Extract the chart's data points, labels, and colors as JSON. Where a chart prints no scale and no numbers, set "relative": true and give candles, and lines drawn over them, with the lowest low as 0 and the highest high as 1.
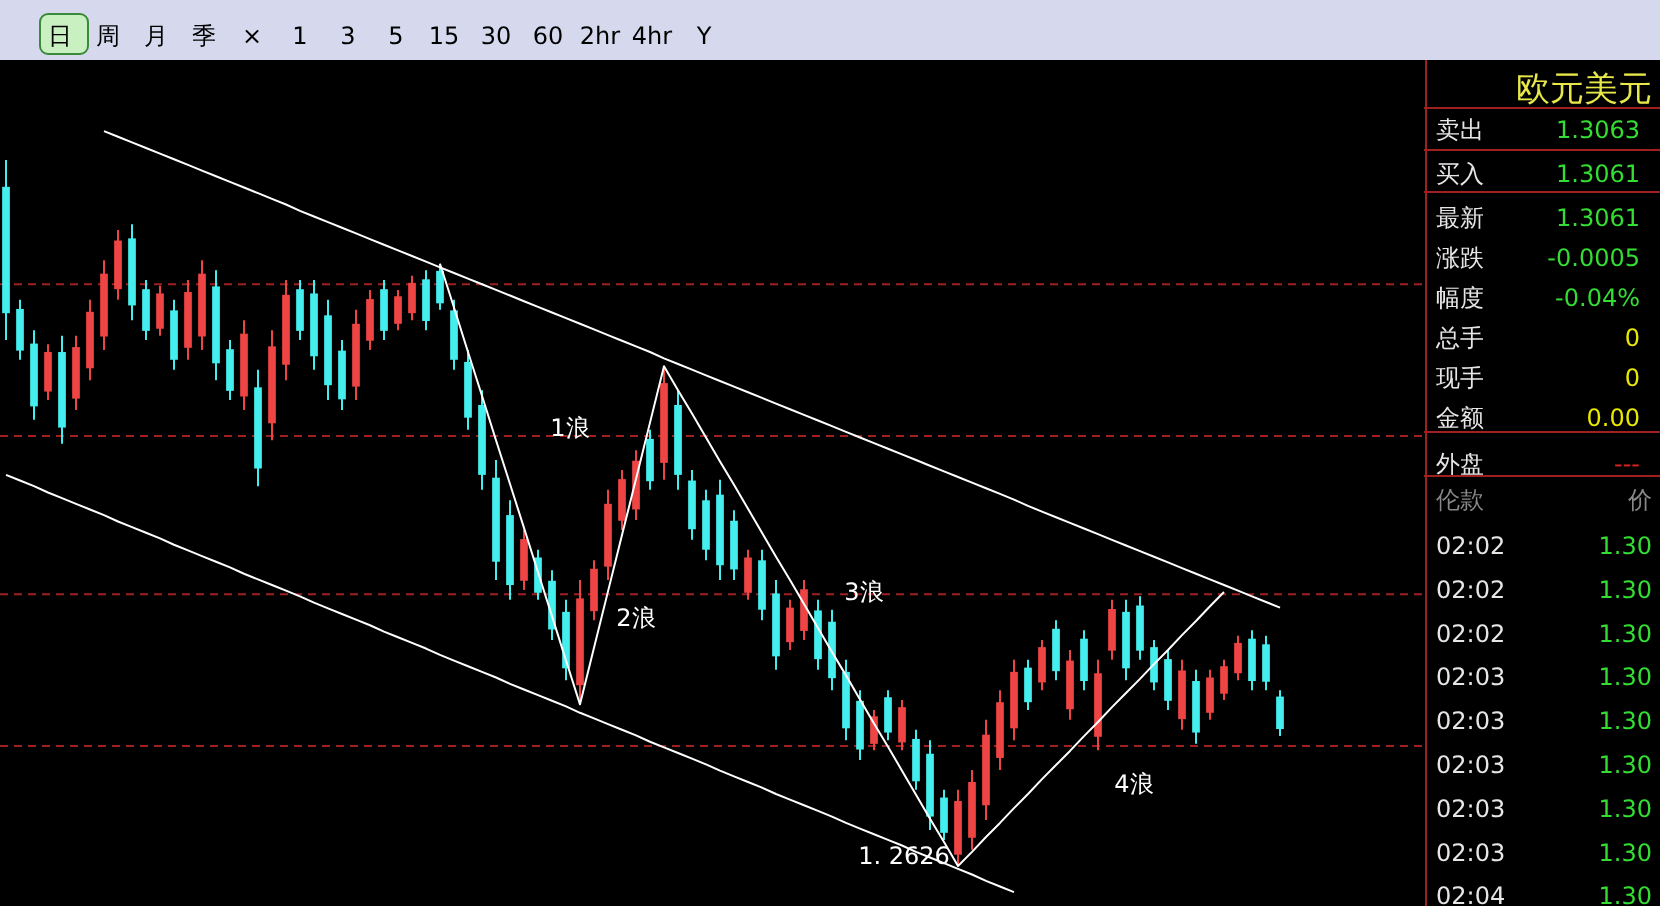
{
  "chart_data": [
    {
      "type": "other",
      "annotations": [
        "日",
        "周",
        "月",
        "季",
        "×",
        "1",
        "3",
        "5",
        "15",
        "30",
        "60",
        "2hr",
        "4hr",
        "Y"
      ]
    },
    {
      "type": "candlestick",
      "relative": true,
      "colors": [
        "#44eeee",
        "#44eeee",
        "#44eeee",
        "#ee4444",
        "#44eeee",
        "#ee4444",
        "#ee4444",
        "#ee4444",
        "#ee4444",
        "#44eeee",
        "#44eeee",
        "#ee4444",
        "#44eeee",
        "#ee4444",
        "#ee4444",
        "#44eeee",
        "#44eeee",
        "#ee4444",
        "#44eeee",
        "#ee4444",
        "#ee4444",
        "#44eeee",
        "#44eeee",
        "#44eeee",
        "#44eeee",
        "#ee4444",
        "#ee4444",
        "#44eeee",
        "#ee4444",
        "#ee4444",
        "#44eeee",
        "#44eeee",
        "#44eeee",
        "#44eeee",
        "#44eeee",
        "#44eeee",
        "#44eeee",
        "#ee4444",
        "#44eeee",
        "#44eeee",
        "#44eeee",
        "#ee4444",
        "#ee4444",
        "#ee4444",
        "#ee4444",
        "#ee4444",
        "#44eeee",
        "#ee4444",
        "#44eeee",
        "#44eeee",
        "#44eeee",
        "#44eeee",
        "#44eeee",
        "#ee4444",
        "#44eeee",
        "#44eeee",
        "#ee4444",
        "#ee4444",
        "#44eeee",
        "#44eeee",
        "#44eeee",
        "#44eeee",
        "#ee4444",
        "#44eeee",
        "#ee4444",
        "#44eeee",
        "#44eeee",
        "#44eeee",
        "#ee4444",
        "#ee4444",
        "#ee4444",
        "#ee4444",
        "#ee4444",
        "#44eeee",
        "#ee4444",
        "#44eeee",
        "#ee4444",
        "#44eeee",
        "#ee4444",
        "#ee4444",
        "#44eeee",
        "#44eeee",
        "#44eeee",
        "#44eeee",
        "#ee4444",
        "#44eeee",
        "#ee4444",
        "#ee4444",
        "#ee4444",
        "#44eeee",
        "#44eeee",
        "#44eeee"
      ],
      "categories": [
        null,
        null,
        null,
        null,
        null,
        null,
        null,
        null,
        null,
        null,
        null,
        null,
        null,
        null,
        null,
        null,
        null,
        null,
        null,
        null,
        null,
        null,
        null,
        null,
        null,
        null,
        null,
        null,
        null,
        null,
        null,
        null,
        null,
        null,
        null,
        null,
        null,
        null,
        null,
        null,
        null,
        null,
        null,
        null,
        null,
        null,
        null,
        null,
        null,
        null,
        null,
        null,
        null,
        null,
        null,
        null,
        null,
        null,
        null,
        null,
        null,
        null,
        null,
        null,
        null,
        null,
        null,
        null,
        null,
        null,
        null,
        null,
        null,
        null,
        null,
        null,
        null,
        null,
        null,
        null,
        null,
        null,
        null,
        null,
        null,
        null,
        null,
        null,
        null,
        null,
        null,
        null
      ],
      "ohlc": [
        [
          0.962,
          1,
          0.745,
          0.783
        ],
        [
          0.789,
          0.802,
          0.717,
          0.73
        ],
        [
          0.74,
          0.759,
          0.632,
          0.651
        ],
        [
          0.672,
          0.739,
          0.66,
          0.728
        ],
        [
          0.728,
          0.751,
          0.598,
          0.621
        ],
        [
          0.662,
          0.751,
          0.646,
          0.735
        ],
        [
          0.705,
          0.802,
          0.688,
          0.785
        ],
        [
          0.75,
          0.858,
          0.731,
          0.839
        ],
        [
          0.817,
          0.901,
          0.802,
          0.886
        ],
        [
          0.889,
          0.909,
          0.773,
          0.794
        ],
        [
          0.817,
          0.83,
          0.745,
          0.758
        ],
        [
          0.761,
          0.822,
          0.751,
          0.811
        ],
        [
          0.787,
          0.802,
          0.703,
          0.717
        ],
        [
          0.734,
          0.83,
          0.717,
          0.813
        ],
        [
          0.75,
          0.858,
          0.731,
          0.839
        ],
        [
          0.821,
          0.844,
          0.688,
          0.712
        ],
        [
          0.732,
          0.745,
          0.66,
          0.673
        ],
        [
          0.665,
          0.773,
          0.646,
          0.754
        ],
        [
          0.678,
          0.703,
          0.538,
          0.563
        ],
        [
          0.627,
          0.759,
          0.603,
          0.736
        ],
        [
          0.71,
          0.83,
          0.688,
          0.809
        ],
        [
          0.817,
          0.83,
          0.745,
          0.758
        ],
        [
          0.811,
          0.83,
          0.703,
          0.722
        ],
        [
          0.78,
          0.802,
          0.66,
          0.681
        ],
        [
          0.73,
          0.745,
          0.646,
          0.661
        ],
        [
          0.679,
          0.788,
          0.66,
          0.768
        ],
        [
          0.744,
          0.816,
          0.731,
          0.803
        ],
        [
          0.817,
          0.83,
          0.745,
          0.758
        ],
        [
          0.768,
          0.816,
          0.759,
          0.807
        ],
        [
          0.783,
          0.836,
          0.773,
          0.826
        ],
        [
          0.831,
          0.844,
          0.759,
          0.772
        ],
        [
          0.843,
          0.853,
          0.788,
          0.797
        ],
        [
          0.787,
          0.802,
          0.703,
          0.717
        ],
        [
          0.714,
          0.731,
          0.618,
          0.635
        ],
        [
          0.653,
          0.674,
          0.533,
          0.554
        ],
        [
          0.55,
          0.575,
          0.405,
          0.431
        ],
        [
          0.497,
          0.518,
          0.377,
          0.398
        ],
        [
          0.404,
          0.476,
          0.391,
          0.463
        ],
        [
          0.437,
          0.448,
          0.377,
          0.387
        ],
        [
          0.404,
          0.419,
          0.32,
          0.335
        ],
        [
          0.36,
          0.377,
          0.263,
          0.28
        ],
        [
          0.256,
          0.405,
          0.229,
          0.379
        ],
        [
          0.361,
          0.433,
          0.348,
          0.421
        ],
        [
          0.424,
          0.533,
          0.405,
          0.513
        ],
        [
          0.489,
          0.561,
          0.476,
          0.548
        ],
        [
          0.505,
          0.589,
          0.49,
          0.574
        ],
        [
          0.605,
          0.618,
          0.533,
          0.545
        ],
        [
          0.571,
          0.708,
          0.547,
          0.684
        ],
        [
          0.653,
          0.674,
          0.533,
          0.554
        ],
        [
          0.546,
          0.561,
          0.462,
          0.477
        ],
        [
          0.518,
          0.533,
          0.433,
          0.448
        ],
        [
          0.526,
          0.547,
          0.405,
          0.426
        ],
        [
          0.489,
          0.504,
          0.405,
          0.42
        ],
        [
          0.387,
          0.448,
          0.377,
          0.437
        ],
        [
          0.433,
          0.448,
          0.348,
          0.363
        ],
        [
          0.386,
          0.405,
          0.278,
          0.297
        ],
        [
          0.317,
          0.377,
          0.306,
          0.366
        ],
        [
          0.333,
          0.405,
          0.32,
          0.392
        ],
        [
          0.362,
          0.377,
          0.278,
          0.293
        ],
        [
          0.346,
          0.363,
          0.249,
          0.266
        ],
        [
          0.275,
          0.292,
          0.178,
          0.195
        ],
        [
          0.234,
          0.249,
          0.15,
          0.165
        ],
        [
          0.173,
          0.221,
          0.164,
          0.212
        ],
        [
          0.239,
          0.249,
          0.178,
          0.189
        ],
        [
          0.175,
          0.235,
          0.164,
          0.225
        ],
        [
          0.18,
          0.193,
          0.108,
          0.12
        ],
        [
          0.159,
          0.178,
          0.051,
          0.07
        ],
        [
          0.097,
          0.108,
          0.037,
          0.047
        ],
        [
          0.016,
          0.108,
          0,
          0.092
        ],
        [
          0.04,
          0.136,
          0.023,
          0.119
        ],
        [
          0.086,
          0.207,
          0.065,
          0.186
        ],
        [
          0.153,
          0.249,
          0.136,
          0.232
        ],
        [
          0.195,
          0.292,
          0.178,
          0.275
        ],
        [
          0.281,
          0.292,
          0.221,
          0.232
        ],
        [
          0.26,
          0.32,
          0.249,
          0.31
        ],
        [
          0.336,
          0.348,
          0.263,
          0.276
        ],
        [
          0.222,
          0.306,
          0.207,
          0.291
        ],
        [
          0.322,
          0.334,
          0.249,
          0.262
        ],
        [
          0.183,
          0.292,
          0.164,
          0.273
        ],
        [
          0.305,
          0.377,
          0.292,
          0.364
        ],
        [
          0.36,
          0.377,
          0.263,
          0.28
        ],
        [
          0.369,
          0.382,
          0.292,
          0.305
        ],
        [
          0.31,
          0.32,
          0.249,
          0.26
        ],
        [
          0.293,
          0.306,
          0.221,
          0.234
        ],
        [
          0.208,
          0.292,
          0.193,
          0.277
        ],
        [
          0.262,
          0.278,
          0.173,
          0.189
        ],
        [
          0.217,
          0.278,
          0.207,
          0.267
        ],
        [
          0.244,
          0.292,
          0.235,
          0.283
        ],
        [
          0.273,
          0.326,
          0.263,
          0.316
        ],
        [
          0.322,
          0.334,
          0.249,
          0.262
        ],
        [
          0.314,
          0.326,
          0.249,
          0.261
        ],
        [
          0.24,
          0.249,
          0.184,
          0.194
        ]
      ],
      "series": [
        {
          "type": "line",
          "color": "#ffffff",
          "values": [
            null,
            null,
            null,
            null,
            null,
            null,
            null,
            1.041,
            1.033,
            1.025,
            1.017,
            1.009,
            1.001,
            0.993,
            0.985,
            0.977,
            0.969,
            0.961,
            0.953,
            0.945,
            0.937,
            0.928,
            0.92,
            0.912,
            0.904,
            0.896,
            0.888,
            0.88,
            0.872,
            0.864,
            0.856,
            0.848,
            0.84,
            0.832,
            0.824,
            0.816,
            0.808,
            0.8,
            0.792,
            0.784,
            0.776,
            0.768,
            0.76,
            0.752,
            0.744,
            0.736,
            0.728,
            0.719,
            0.711,
            0.703,
            0.695,
            0.687,
            0.679,
            0.671,
            0.663,
            0.655,
            0.647,
            0.639,
            0.631,
            0.623,
            0.615,
            0.607,
            0.599,
            0.591,
            0.583,
            0.575,
            0.567,
            0.559,
            0.551,
            0.543,
            0.535,
            0.527,
            0.519,
            0.51,
            0.502,
            0.494,
            0.486,
            0.478,
            0.47,
            0.462,
            0.454,
            0.446,
            0.438,
            0.43,
            0.422,
            0.414,
            0.406,
            0.398,
            0.39,
            0.382,
            0.374,
            0.366
          ]
        },
        {
          "type": "line",
          "color": "#ffffff",
          "values": [
            0.554,
            0.546,
            0.538,
            0.529,
            0.521,
            0.513,
            0.505,
            0.497,
            0.488,
            0.48,
            0.472,
            0.464,
            0.455,
            0.447,
            0.439,
            0.431,
            0.423,
            0.414,
            0.406,
            0.398,
            0.39,
            0.382,
            0.373,
            0.365,
            0.357,
            0.349,
            0.341,
            0.332,
            0.324,
            0.316,
            0.308,
            0.299,
            0.291,
            0.283,
            0.275,
            0.267,
            0.258,
            0.25,
            0.242,
            0.234,
            0.226,
            0.217,
            0.209,
            0.201,
            0.193,
            0.185,
            0.176,
            0.168,
            0.16,
            0.152,
            0.144,
            0.135,
            0.127,
            0.119,
            0.111,
            0.102,
            0.094,
            0.086,
            0.078,
            0.07,
            0.061,
            0.053,
            0.045,
            0.037,
            0.029,
            0.02,
            0.012,
            0.004,
            -0.004,
            -0.012,
            -0.021,
            -0.029,
            -0.037,
            null,
            null,
            null,
            null,
            null,
            null,
            null,
            null,
            null,
            null,
            null,
            null,
            null,
            null,
            null,
            null,
            null,
            null,
            null
          ]
        },
        {
          "type": "line",
          "color": "#ffffff",
          "values": [
            null,
            null,
            null,
            null,
            null,
            null,
            null,
            null,
            null,
            null,
            null,
            null,
            null,
            null,
            null,
            null,
            null,
            null,
            null,
            null,
            null,
            null,
            null,
            null,
            null,
            null,
            null,
            null,
            null,
            null,
            null,
            0.853,
            0.791,
            0.728,
            0.666,
            0.603,
            0.541,
            0.479,
            0.416,
            0.354,
            0.291,
            0.229,
            0.309,
            0.389,
            0.469,
            0.548,
            0.628,
            0.708,
            0.674,
            0.641,
            0.607,
            0.573,
            0.54,
            0.506,
            0.472,
            0.438,
            0.405,
            0.371,
            0.337,
            0.303,
            0.27,
            0.236,
            0.202,
            0.169,
            0.135,
            0.101,
            0.067,
            0.034,
            0,
            0.02,
            0.041,
            0.061,
            0.082,
            0.102,
            0.123,
            0.143,
            0.163,
            0.184,
            0.204,
            0.225,
            0.245,
            0.265,
            0.286,
            0.306,
            0.327,
            0.347,
            0.368,
            0.388,
            null,
            null,
            null,
            null
          ]
        }
      ],
      "ref_lines": [
        {
          "axis": "y",
          "value": 0.824,
          "color": "#a02020",
          "line_style": "dashed"
        },
        {
          "axis": "y",
          "value": 0.609,
          "color": "#a02020",
          "line_style": "dashed"
        },
        {
          "axis": "y",
          "value": 0.385,
          "color": "#a02020",
          "line_style": "dashed"
        },
        {
          "axis": "y",
          "value": 0.17,
          "color": "#a02020",
          "line_style": "dashed"
        }
      ],
      "annotations": [
        "1浪",
        "2浪",
        "3浪",
        "4浪",
        "1. 2626"
      ]
    },
    {
      "type": "other",
      "title": "欧元美元",
      "annotations": [
        "卖出",
        "买入",
        "最新",
        "涨跌",
        "幅度",
        "总手",
        "现手",
        "金额",
        "外盘"
      ],
      "categories": [
        "1.3063",
        "1.3061",
        "1.3061",
        "-0.0005",
        "-0.04%",
        "0",
        "0",
        "0.00",
        "---"
      ]
    },
    {
      "type": "other",
      "annotations": [
        "伦款",
        "价"
      ],
      "categories": [
        "02:02",
        "02:02",
        "02:02",
        "02:03",
        "02:03",
        "02:03",
        "02:03",
        "02:03",
        "02:04"
      ],
      "value_labels": [
        "1.30",
        "1.30",
        "1.30",
        "1.30",
        "1.30",
        "1.30",
        "1.30",
        "1.30",
        "1.30"
      ],
      "color": "#33dd33"
    }
  ]
}
